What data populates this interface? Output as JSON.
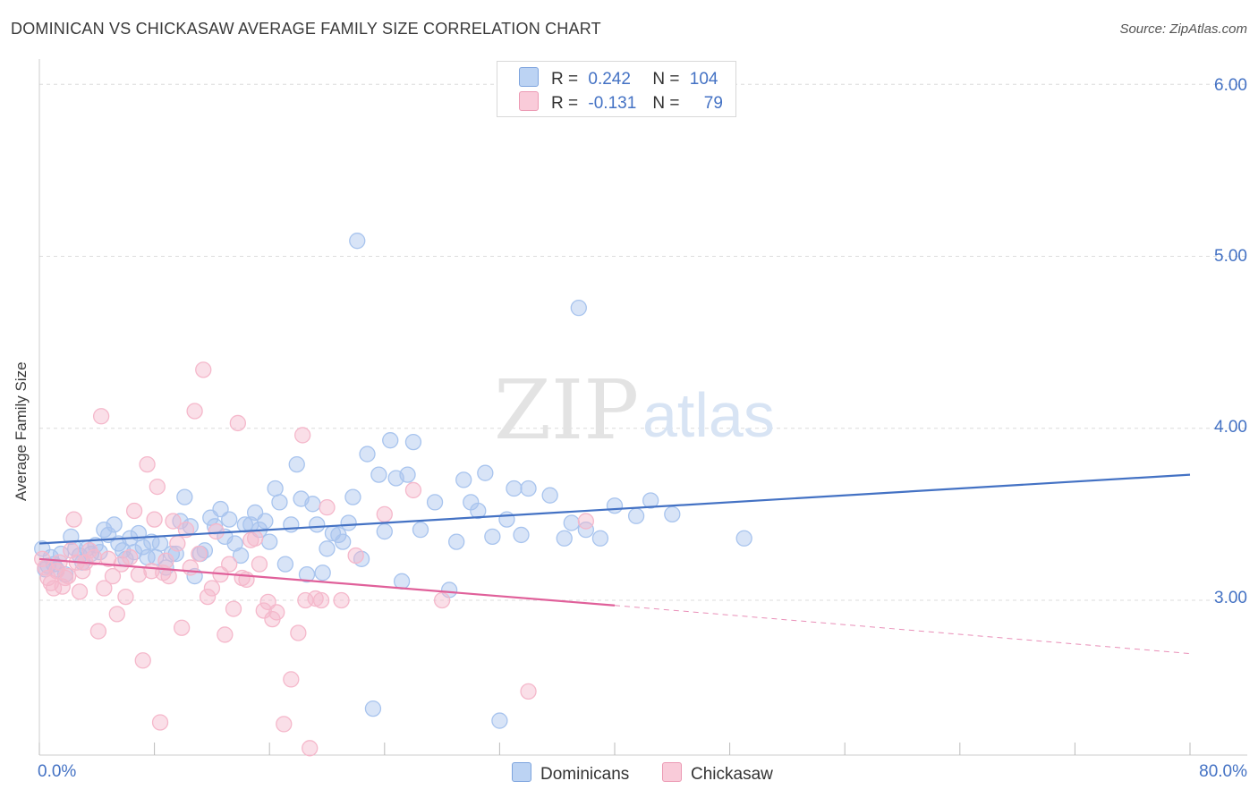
{
  "title": "DOMINICAN VS CHICKASAW AVERAGE FAMILY SIZE CORRELATION CHART",
  "source": "Source: ZipAtlas.com",
  "watermark": {
    "zip": "ZIP",
    "atlas": "atlas"
  },
  "legend": {
    "r_label": "R =",
    "n_label": "N =",
    "rows": [
      {
        "r": "0.242",
        "n": "104",
        "color": "#a8c4ee"
      },
      {
        "r": "-0.131",
        "n": "79",
        "color": "#f5b8cb"
      }
    ]
  },
  "bottom_legend": [
    {
      "label": "Dominicans",
      "color": "#a8c4ee"
    },
    {
      "label": "Chickasaw",
      "color": "#f5b8cb"
    }
  ],
  "chart_data": {
    "type": "scatter",
    "title": "DOMINICAN VS CHICKASAW AVERAGE FAMILY SIZE CORRELATION CHART",
    "xlabel": "",
    "ylabel": "Average Family Size",
    "x_tick_labels": [
      "0.0%",
      "80.0%"
    ],
    "y_tick_labels": [
      "3.00",
      "4.00",
      "5.00",
      "6.00"
    ],
    "xlim": [
      0,
      80
    ],
    "ylim": [
      2.1,
      6.1
    ],
    "grid": true,
    "legend_position": "top-center",
    "series": [
      {
        "name": "Dominicans",
        "color": "#4472c4",
        "fill": "#a8c4ee",
        "trend": {
          "x": [
            0,
            80
          ],
          "y": [
            3.33,
            3.73
          ]
        },
        "points": [
          [
            0.2,
            3.3
          ],
          [
            0.4,
            3.18
          ],
          [
            0.6,
            3.2
          ],
          [
            0.8,
            3.25
          ],
          [
            1.0,
            3.21
          ],
          [
            1.2,
            3.18
          ],
          [
            1.5,
            3.27
          ],
          [
            1.8,
            3.15
          ],
          [
            2.2,
            3.37
          ],
          [
            2.5,
            3.3
          ],
          [
            2.8,
            3.26
          ],
          [
            3.0,
            3.22
          ],
          [
            3.3,
            3.3
          ],
          [
            3.6,
            3.27
          ],
          [
            3.9,
            3.32
          ],
          [
            4.2,
            3.28
          ],
          [
            4.5,
            3.41
          ],
          [
            4.8,
            3.38
          ],
          [
            5.2,
            3.44
          ],
          [
            5.5,
            3.33
          ],
          [
            5.8,
            3.29
          ],
          [
            6.0,
            3.24
          ],
          [
            6.3,
            3.36
          ],
          [
            6.6,
            3.28
          ],
          [
            6.9,
            3.39
          ],
          [
            7.2,
            3.31
          ],
          [
            7.5,
            3.25
          ],
          [
            7.8,
            3.34
          ],
          [
            8.1,
            3.25
          ],
          [
            8.4,
            3.33
          ],
          [
            8.8,
            3.19
          ],
          [
            9.2,
            3.27
          ],
          [
            9.5,
            3.27
          ],
          [
            9.8,
            3.46
          ],
          [
            10.1,
            3.6
          ],
          [
            10.5,
            3.43
          ],
          [
            10.8,
            3.14
          ],
          [
            11.2,
            3.27
          ],
          [
            11.5,
            3.29
          ],
          [
            11.9,
            3.48
          ],
          [
            12.2,
            3.43
          ],
          [
            12.6,
            3.53
          ],
          [
            12.9,
            3.37
          ],
          [
            13.2,
            3.47
          ],
          [
            13.6,
            3.33
          ],
          [
            14.0,
            3.26
          ],
          [
            14.3,
            3.44
          ],
          [
            14.7,
            3.44
          ],
          [
            15.0,
            3.51
          ],
          [
            15.3,
            3.41
          ],
          [
            15.7,
            3.46
          ],
          [
            16.0,
            3.34
          ],
          [
            16.4,
            3.65
          ],
          [
            16.7,
            3.57
          ],
          [
            17.1,
            3.21
          ],
          [
            17.5,
            3.44
          ],
          [
            17.9,
            3.79
          ],
          [
            18.2,
            3.59
          ],
          [
            18.6,
            3.15
          ],
          [
            19.0,
            3.56
          ],
          [
            19.3,
            3.44
          ],
          [
            19.7,
            3.16
          ],
          [
            20.0,
            3.3
          ],
          [
            20.4,
            3.39
          ],
          [
            20.8,
            3.38
          ],
          [
            21.1,
            3.34
          ],
          [
            21.5,
            3.45
          ],
          [
            21.8,
            3.6
          ],
          [
            22.1,
            5.09
          ],
          [
            22.4,
            3.24
          ],
          [
            22.8,
            3.85
          ],
          [
            23.2,
            2.37
          ],
          [
            23.6,
            3.73
          ],
          [
            24.0,
            3.4
          ],
          [
            24.4,
            3.93
          ],
          [
            24.8,
            3.71
          ],
          [
            25.2,
            3.11
          ],
          [
            25.6,
            3.73
          ],
          [
            26.0,
            3.92
          ],
          [
            26.5,
            3.41
          ],
          [
            27.5,
            3.57
          ],
          [
            28.5,
            3.06
          ],
          [
            29.0,
            3.34
          ],
          [
            29.5,
            3.7
          ],
          [
            30.0,
            3.57
          ],
          [
            30.5,
            3.52
          ],
          [
            31.0,
            3.74
          ],
          [
            31.5,
            3.37
          ],
          [
            32.0,
            2.3
          ],
          [
            32.5,
            3.47
          ],
          [
            33.0,
            3.65
          ],
          [
            33.5,
            3.38
          ],
          [
            34.0,
            3.65
          ],
          [
            35.5,
            3.61
          ],
          [
            36.5,
            3.36
          ],
          [
            37.0,
            3.45
          ],
          [
            37.5,
            4.7
          ],
          [
            38.0,
            3.41
          ],
          [
            39.0,
            3.36
          ],
          [
            40.0,
            3.55
          ],
          [
            41.5,
            3.49
          ],
          [
            42.5,
            3.58
          ],
          [
            44.0,
            3.5
          ],
          [
            49.0,
            3.36
          ]
        ]
      },
      {
        "name": "Chickasaw",
        "color": "#e0609a",
        "fill": "#f5b8cb",
        "trend": {
          "x": [
            0,
            40
          ],
          "y": [
            3.24,
            2.97
          ]
        },
        "trend_dashed": {
          "x": [
            40,
            80
          ],
          "y": [
            2.97,
            2.69
          ]
        },
        "points": [
          [
            0.2,
            3.24
          ],
          [
            0.4,
            3.19
          ],
          [
            0.6,
            3.13
          ],
          [
            0.8,
            3.1
          ],
          [
            1.0,
            3.07
          ],
          [
            1.2,
            3.17
          ],
          [
            1.4,
            3.22
          ],
          [
            1.6,
            3.08
          ],
          [
            1.8,
            3.13
          ],
          [
            2.0,
            3.14
          ],
          [
            2.2,
            3.29
          ],
          [
            2.4,
            3.47
          ],
          [
            2.6,
            3.22
          ],
          [
            2.8,
            3.05
          ],
          [
            3.0,
            3.17
          ],
          [
            3.2,
            3.22
          ],
          [
            3.5,
            3.29
          ],
          [
            3.8,
            3.25
          ],
          [
            4.1,
            2.82
          ],
          [
            4.3,
            4.07
          ],
          [
            4.5,
            3.07
          ],
          [
            4.8,
            3.24
          ],
          [
            5.1,
            3.14
          ],
          [
            5.4,
            2.92
          ],
          [
            5.7,
            3.21
          ],
          [
            6.0,
            3.02
          ],
          [
            6.3,
            3.25
          ],
          [
            6.6,
            3.52
          ],
          [
            6.9,
            3.15
          ],
          [
            7.2,
            2.65
          ],
          [
            7.5,
            3.79
          ],
          [
            7.8,
            3.17
          ],
          [
            8.0,
            3.47
          ],
          [
            8.2,
            3.66
          ],
          [
            8.4,
            2.29
          ],
          [
            8.6,
            3.16
          ],
          [
            8.8,
            3.23
          ],
          [
            9.0,
            3.14
          ],
          [
            9.3,
            3.46
          ],
          [
            9.6,
            3.33
          ],
          [
            9.9,
            2.84
          ],
          [
            10.2,
            3.41
          ],
          [
            10.5,
            3.19
          ],
          [
            10.8,
            4.1
          ],
          [
            11.1,
            3.27
          ],
          [
            11.4,
            4.34
          ],
          [
            11.7,
            3.02
          ],
          [
            12.0,
            3.07
          ],
          [
            12.3,
            3.4
          ],
          [
            12.6,
            3.15
          ],
          [
            12.9,
            2.8
          ],
          [
            13.2,
            3.21
          ],
          [
            13.5,
            2.95
          ],
          [
            13.8,
            4.03
          ],
          [
            14.1,
            3.13
          ],
          [
            14.4,
            3.12
          ],
          [
            14.7,
            3.35
          ],
          [
            15.0,
            3.36
          ],
          [
            15.3,
            3.21
          ],
          [
            15.6,
            2.94
          ],
          [
            15.9,
            2.99
          ],
          [
            16.2,
            2.89
          ],
          [
            16.5,
            2.93
          ],
          [
            17.0,
            2.28
          ],
          [
            17.5,
            2.54
          ],
          [
            18.0,
            2.81
          ],
          [
            18.3,
            3.96
          ],
          [
            18.5,
            3.0
          ],
          [
            18.8,
            2.14
          ],
          [
            19.2,
            3.01
          ],
          [
            19.6,
            3.0
          ],
          [
            20.0,
            3.54
          ],
          [
            21.0,
            3.0
          ],
          [
            22.0,
            3.26
          ],
          [
            24.0,
            3.5
          ],
          [
            26.0,
            3.64
          ],
          [
            28.0,
            3.0
          ],
          [
            34.0,
            2.47
          ],
          [
            38.0,
            3.46
          ]
        ]
      }
    ]
  }
}
